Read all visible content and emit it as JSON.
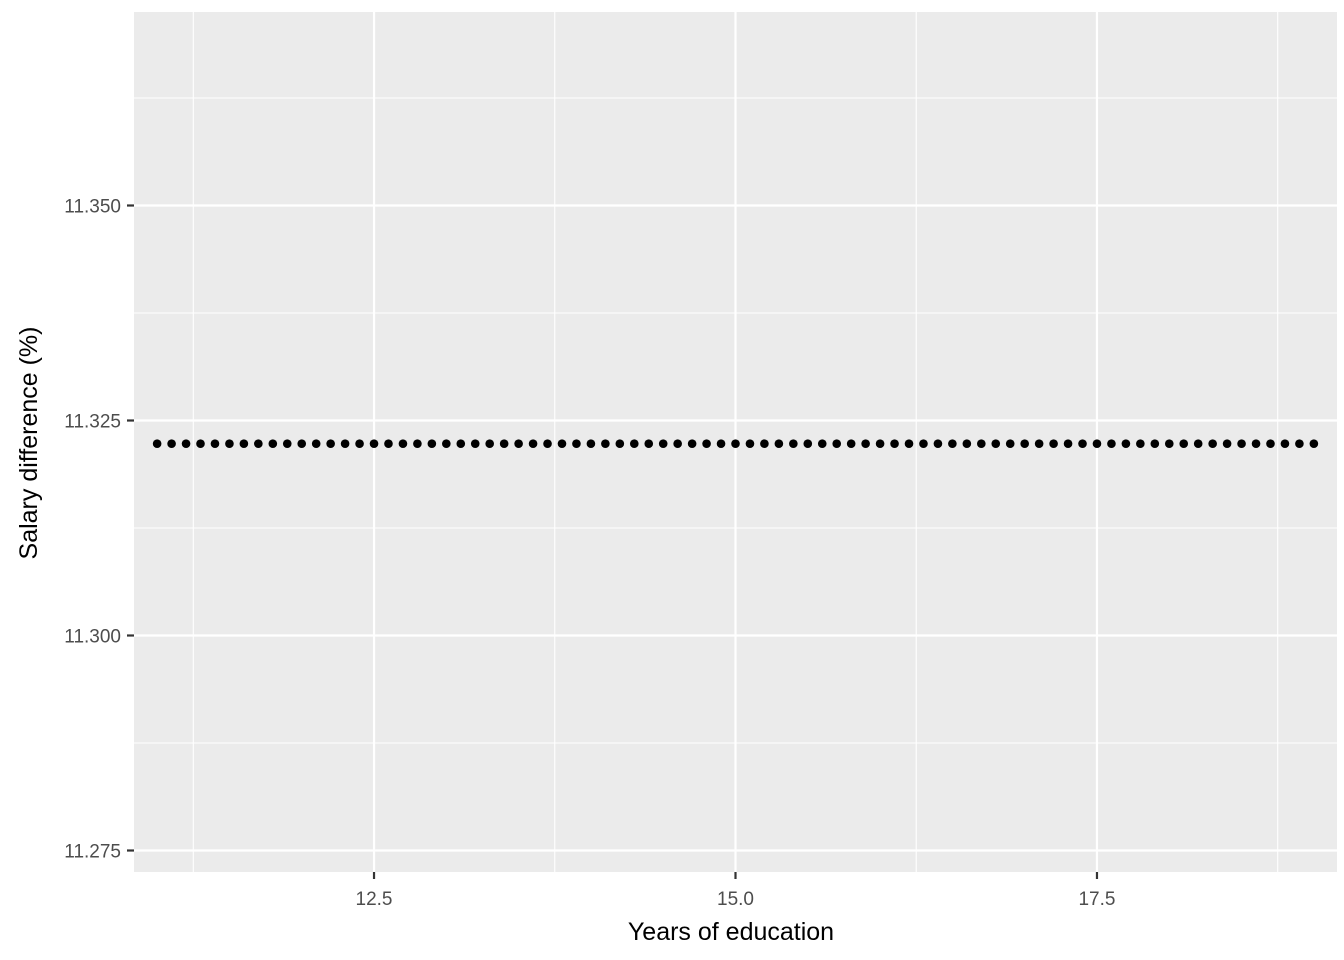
{
  "chart_data": {
    "type": "scatter",
    "title": "",
    "xlabel": "Years of education",
    "ylabel": "Salary difference (%)",
    "xlim": [
      10.84,
      19.16
    ],
    "ylim": [
      11.2725,
      11.3725
    ],
    "x_ticks": [
      12.5,
      15.0,
      17.5
    ],
    "x_tick_labels": [
      "12.5",
      "15.0",
      "17.5"
    ],
    "y_ticks": [
      11.275,
      11.3,
      11.325,
      11.35
    ],
    "y_tick_labels": [
      "11.275",
      "11.300",
      "11.325",
      "11.350"
    ],
    "grid": true,
    "legend": "none",
    "background": "#ebebeb",
    "grid_color": "#ffffff",
    "point_color": "#000000",
    "x_start": 11.0,
    "x_end": 19.0,
    "x_step": 0.1,
    "y_value": 11.3223
  }
}
